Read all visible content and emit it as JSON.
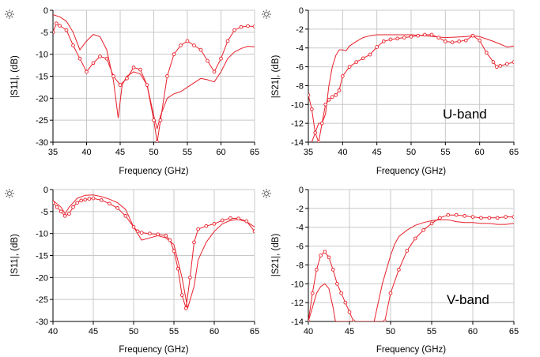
{
  "chart_data": [
    {
      "type": "line",
      "xlabel": "Frequency (GHz)",
      "ylabel": "|S11|, (dB)",
      "xlim": [
        35,
        65
      ],
      "ylim": [
        -30,
        0
      ],
      "xticks": [
        "35",
        "40",
        "45",
        "50",
        "55",
        "60",
        "65"
      ],
      "yticks": [
        "0",
        "-5",
        "-10",
        "-15",
        "-20",
        "-25",
        "-30"
      ],
      "grid": true,
      "band_label": "",
      "series": [
        {
          "style": "solid",
          "x": [
            35,
            36,
            37,
            38,
            39,
            40,
            41,
            42,
            43,
            44,
            44.7,
            45.3,
            46,
            47,
            48,
            49,
            50,
            50.5,
            51,
            52,
            53,
            54,
            55,
            56,
            57,
            58,
            59,
            60,
            61,
            62,
            63,
            64,
            65
          ],
          "y": [
            -1,
            -1.5,
            -2.5,
            -5,
            -9,
            -7,
            -5.5,
            -6,
            -9,
            -16,
            -24.5,
            -17,
            -15,
            -14,
            -14.5,
            -17,
            -24,
            -27,
            -24,
            -20,
            -19,
            -18.5,
            -17.5,
            -16.5,
            -15.5,
            -15.8,
            -16.3,
            -14,
            -11,
            -9.5,
            -8.7,
            -8.2,
            -8.3
          ]
        },
        {
          "style": "markers",
          "x": [
            35,
            35.5,
            36,
            37,
            38,
            39,
            40,
            41,
            42,
            43,
            44,
            45,
            46,
            47,
            48,
            49,
            50,
            50.5,
            51,
            52,
            53,
            54,
            55,
            56,
            57,
            58,
            59,
            60,
            61,
            62,
            63,
            64,
            65
          ],
          "y": [
            -5,
            -3,
            -3.5,
            -4.5,
            -8,
            -11,
            -14,
            -12,
            -10.5,
            -11,
            -15,
            -17,
            -15.5,
            -13,
            -13.5,
            -17,
            -25,
            -30,
            -25,
            -15,
            -10,
            -8,
            -7,
            -8,
            -9,
            -11.5,
            -14,
            -11,
            -7,
            -4.5,
            -3.8,
            -3.6,
            -3.7
          ]
        }
      ]
    },
    {
      "type": "line",
      "xlabel": "Frequency (GHz)",
      "ylabel": "|S21|, (dB)",
      "xlim": [
        35,
        65
      ],
      "ylim": [
        -14,
        0
      ],
      "xticks": [
        "35",
        "40",
        "45",
        "50",
        "55",
        "60",
        "65"
      ],
      "yticks": [
        "0",
        "-2",
        "-4",
        "-6",
        "-8",
        "-10",
        "-12",
        "-14"
      ],
      "grid": true,
      "band_label": "U-band",
      "series": [
        {
          "style": "solid",
          "x": [
            35.5,
            36,
            36.5,
            37,
            37.5,
            38,
            38.5,
            39,
            39.5,
            40,
            40.5,
            41,
            42,
            43,
            44,
            45,
            47,
            50,
            52,
            55,
            58,
            59,
            60,
            62,
            63,
            64,
            65
          ],
          "y": [
            -14,
            -13,
            -12,
            -12,
            -11,
            -8,
            -6,
            -4.8,
            -4.2,
            -4.2,
            -4.3,
            -3.8,
            -3.3,
            -2.9,
            -2.7,
            -2.6,
            -2.6,
            -2.6,
            -2.7,
            -2.9,
            -2.8,
            -2.7,
            -2.8,
            -3.3,
            -3.6,
            -3.9,
            -3.8
          ]
        },
        {
          "style": "markers",
          "x": [
            35,
            35.5,
            36,
            36.5,
            37,
            37.5,
            38,
            38.5,
            39,
            39.5,
            40,
            41,
            42,
            43,
            44,
            45,
            46,
            47,
            48,
            49,
            50,
            51,
            52,
            53,
            54,
            55,
            56,
            57,
            58,
            59,
            60,
            61,
            62,
            62.5,
            63,
            64,
            65
          ],
          "y": [
            -9,
            -10.5,
            -13,
            -14,
            -12,
            -10,
            -9.5,
            -9.2,
            -9,
            -8.5,
            -7,
            -6,
            -5.5,
            -5.1,
            -4.7,
            -3.9,
            -3.3,
            -3.1,
            -3,
            -2.9,
            -2.8,
            -2.7,
            -2.6,
            -2.6,
            -2.9,
            -3.3,
            -3.4,
            -3.3,
            -3.2,
            -2.7,
            -3.2,
            -4.5,
            -5.5,
            -6,
            -5.9,
            -5.7,
            -5.5
          ]
        }
      ]
    },
    {
      "type": "line",
      "xlabel": "Frequency (GHz)",
      "ylabel": "|S11|, (dB)",
      "xlim": [
        40,
        65
      ],
      "ylim": [
        -30,
        0
      ],
      "xticks": [
        "40",
        "45",
        "50",
        "55",
        "60",
        "65"
      ],
      "yticks": [
        "0",
        "-5",
        "-10",
        "-15",
        "-20",
        "-25",
        "-30"
      ],
      "grid": true,
      "band_label": "",
      "series": [
        {
          "style": "solid",
          "x": [
            40,
            41,
            41.5,
            42,
            43,
            44,
            45,
            46,
            47,
            48,
            49,
            50,
            51,
            52,
            53,
            54,
            55,
            56,
            56.7,
            57.5,
            58,
            59,
            60,
            61,
            62,
            63,
            64,
            65
          ],
          "y": [
            -2.5,
            -4,
            -5.5,
            -4,
            -2,
            -1.3,
            -1.2,
            -1.6,
            -2.2,
            -3,
            -4.5,
            -8.5,
            -11.5,
            -11,
            -10.5,
            -11,
            -12.5,
            -20,
            -27,
            -22,
            -16,
            -12,
            -9.5,
            -7.8,
            -7,
            -6.8,
            -7.3,
            -8.5
          ]
        },
        {
          "style": "markers",
          "x": [
            40,
            40.5,
            41,
            41.5,
            42,
            42.5,
            43,
            43.5,
            44,
            44.5,
            45,
            46,
            47,
            48,
            49,
            50,
            50.5,
            51,
            52,
            53,
            54,
            54.5,
            55,
            55.5,
            56,
            56.5,
            57,
            57.5,
            58,
            59,
            60,
            61,
            62,
            63,
            64,
            65
          ],
          "y": [
            -3,
            -4,
            -5,
            -6,
            -5.5,
            -4,
            -3,
            -2.5,
            -2.3,
            -2.1,
            -2,
            -2.4,
            -3.2,
            -4.2,
            -6,
            -8.5,
            -9.5,
            -9.8,
            -10,
            -10.2,
            -10.5,
            -11.5,
            -14,
            -18,
            -24,
            -27,
            -20,
            -12,
            -9,
            -8.3,
            -7.8,
            -7,
            -6.5,
            -6.6,
            -7.2,
            -9.5
          ]
        }
      ]
    },
    {
      "type": "line",
      "xlabel": "Frequency (GHz)",
      "ylabel": "|S21|, (dB)",
      "xlim": [
        40,
        65
      ],
      "ylim": [
        -14,
        0
      ],
      "xticks": [
        "40",
        "45",
        "50",
        "55",
        "60",
        "65"
      ],
      "yticks": [
        "0",
        "-2",
        "-4",
        "-6",
        "-8",
        "-10",
        "-12",
        "-14"
      ],
      "grid": true,
      "band_label": "V-band",
      "series": [
        {
          "style": "solid",
          "x": [
            40,
            40.5,
            41,
            41.5,
            42,
            42.5,
            43,
            43.3,
            48,
            48.5,
            49,
            49.5,
            50,
            50.5,
            51,
            52,
            53,
            54,
            55,
            56,
            57,
            58,
            59,
            60,
            61,
            62,
            63,
            64,
            65
          ],
          "y": [
            -14,
            -12.5,
            -11,
            -10.3,
            -10,
            -10.5,
            -12.5,
            -14,
            -14,
            -12,
            -10,
            -8.5,
            -7,
            -5.8,
            -5,
            -4.3,
            -3.8,
            -3.5,
            -3.3,
            -3.2,
            -3.2,
            -3.4,
            -3.5,
            -3.5,
            -3.6,
            -3.6,
            -3.7,
            -3.7,
            -3.6
          ]
        },
        {
          "style": "markers",
          "x": [
            40,
            40.5,
            41,
            41.5,
            42,
            42.5,
            43,
            43.5,
            44,
            44.5,
            45,
            45.5,
            49.3,
            50,
            51,
            52,
            53,
            54,
            55,
            56,
            57,
            58,
            59,
            60,
            61,
            62,
            63,
            64,
            65
          ],
          "y": [
            -14,
            -11,
            -8.5,
            -7,
            -6.6,
            -7.2,
            -8.5,
            -10,
            -11,
            -12,
            -13,
            -14,
            -14,
            -11,
            -8.5,
            -6.5,
            -5.2,
            -4.3,
            -3.6,
            -3,
            -2.7,
            -2.7,
            -2.8,
            -2.9,
            -3,
            -3,
            -3,
            -2.9,
            -2.9
          ]
        }
      ]
    }
  ],
  "colors": {
    "trace": "#e8202a",
    "grid": "#c8c8c8",
    "axis": "#000000",
    "icon": "#555555"
  },
  "icons": {
    "corner": "sun-icon"
  }
}
